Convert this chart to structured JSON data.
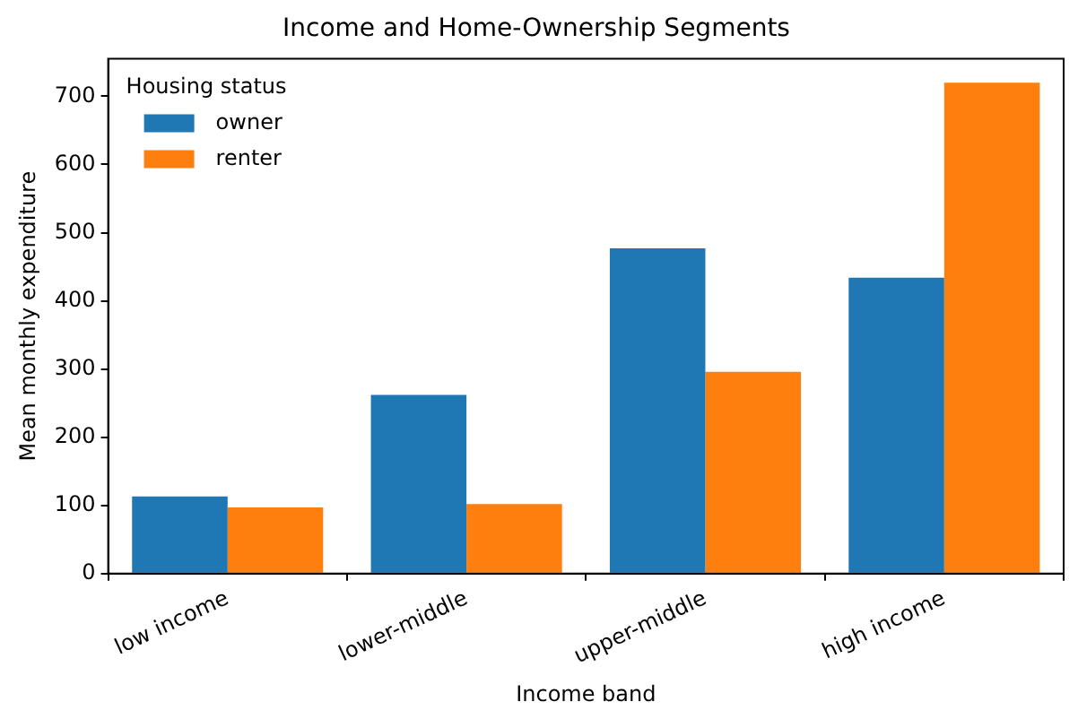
{
  "chart_data": {
    "type": "bar",
    "title": "Income and Home-Ownership Segments",
    "xlabel": "Income band",
    "ylabel": "Mean monthly expenditure",
    "legend_title": "Housing status",
    "categories": [
      "low income",
      "lower-middle",
      "upper-middle",
      "high income"
    ],
    "series": [
      {
        "name": "owner",
        "color": "#1f77b4",
        "values": [
          113,
          262,
          477,
          434
        ]
      },
      {
        "name": "renter",
        "color": "#ff7f0e",
        "values": [
          97,
          102,
          296,
          720
        ]
      }
    ],
    "ylim": [
      0,
      755
    ],
    "yticks": [
      0,
      100,
      200,
      300,
      400,
      500,
      600,
      700
    ],
    "grid": false,
    "legend": "top left"
  }
}
